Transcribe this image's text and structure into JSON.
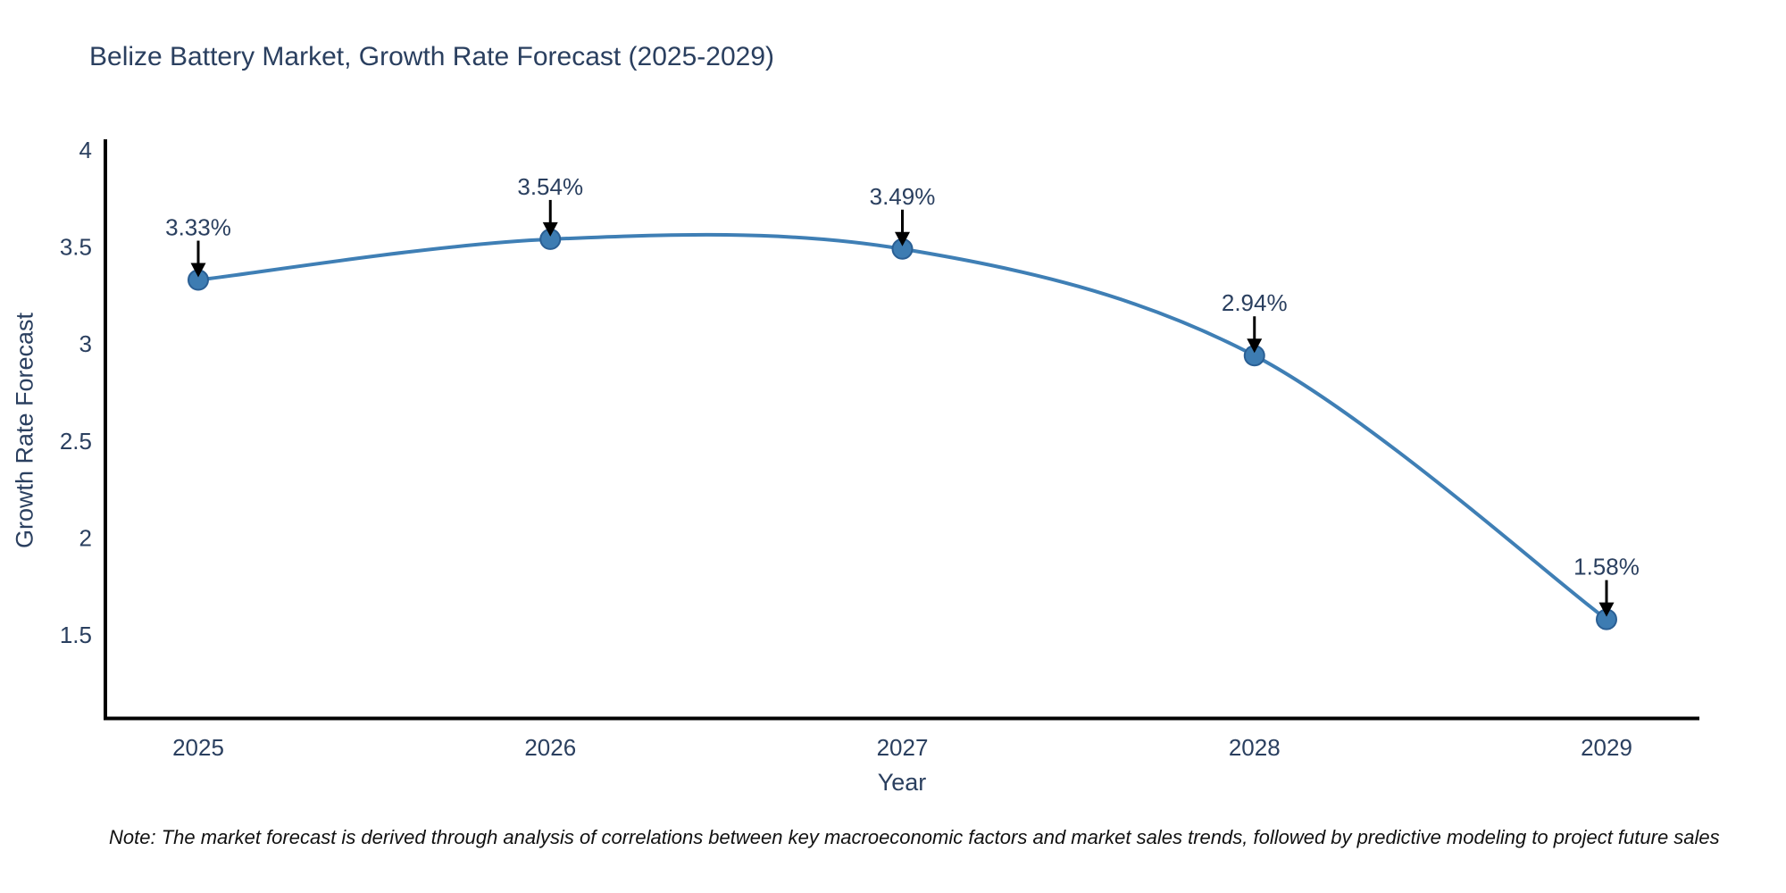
{
  "title": "Belize Battery Market, Growth Rate Forecast (2025-2029)",
  "note": "Note: The market forecast is derived through analysis of correlations between key macroeconomic factors and market sales trends, followed by predictive modeling to project future sales",
  "chart_data": {
    "type": "line",
    "title": "Belize Battery Market, Growth Rate Forecast (2025-2029)",
    "categories": [
      "2025",
      "2026",
      "2027",
      "2028",
      "2029"
    ],
    "values": [
      3.33,
      3.54,
      3.49,
      2.94,
      1.58
    ],
    "point_labels": [
      "3.33%",
      "3.54%",
      "3.49%",
      "2.94%",
      "1.58%"
    ],
    "xlabel": "Year",
    "ylabel": "Growth Rate Forecast",
    "yticks": [
      "4",
      "3.5",
      "3",
      "2.5",
      "2",
      "1.5"
    ],
    "ytick_values": [
      4,
      3.5,
      3,
      2.5,
      2,
      1.5
    ],
    "ylim": [
      1.06,
      4.05
    ],
    "grid": "off",
    "legend": "none",
    "line_shape": "spline",
    "colors": {
      "line": "#3f7fb5",
      "marker_fill": "#3d7cb2",
      "marker_edge": "#2a5f94",
      "arrow": "#000000",
      "axis_line": "#000000",
      "text": "#2a3f5f",
      "note_text": "#111111",
      "background": "#ffffff"
    }
  }
}
